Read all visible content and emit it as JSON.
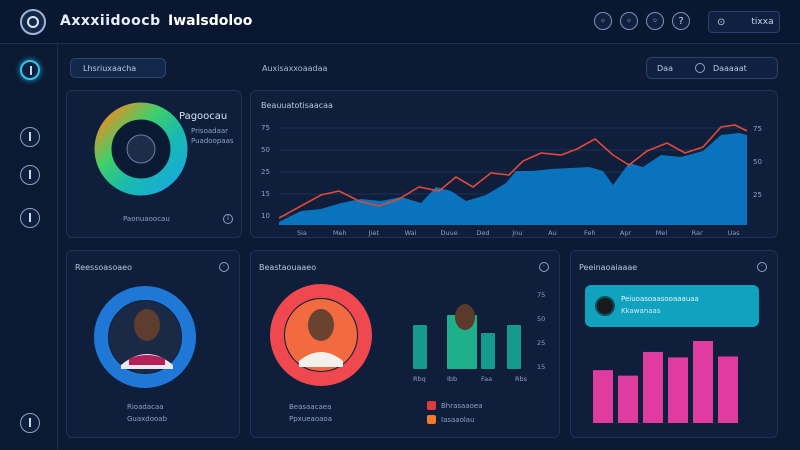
{
  "header": {
    "brand": "Axxxiidoocb",
    "title": "Iwalsdoloo",
    "search_value": "tixxa"
  },
  "filter": {
    "label": "Lhsriuxaacha"
  },
  "section": {
    "label": "Auxisaxxoaadaa"
  },
  "range": {
    "label_left": "Daa",
    "label_right": "Daaaaat"
  },
  "donut_card": {
    "title": "Pagoocau",
    "legend_1": "Prisoadaar",
    "legend_2": "Puadoopaas",
    "footer": "Paonuaoocau",
    "colors": {
      "green": "#3fd06a",
      "orange": "#f48a1e",
      "blue": "#1aa9e0",
      "teal": "#18b9b0"
    }
  },
  "area_card": {
    "title": "Beauuatotisaacaa",
    "y_labels_left": [
      "75",
      "50",
      "25",
      "15",
      "10"
    ],
    "y_labels_right": [
      "75",
      "50",
      "25"
    ],
    "x_labels": [
      "Sia",
      "Meh",
      "Jiet",
      "Wai",
      "Duue",
      "Ded",
      "Jnu",
      "Au",
      "Feh",
      "Apr",
      "Mel",
      "Rar",
      "Uas"
    ],
    "colors": {
      "area": "#0a78c4",
      "line": "#e0483a"
    }
  },
  "profile_card_1": {
    "title": "Reessoasoaeo",
    "name": "Rioadacaa",
    "subtitle": "Guaxdooab",
    "ring_color": "#1f78d6"
  },
  "profile_card_2": {
    "title": "Beastaouaaeo",
    "name": "Beasaacaea",
    "subtitle": "Ppxueaoaoa",
    "ring_color": "#f0484f",
    "bar_x_labels": [
      "Rbq",
      "Ibb",
      "Faa",
      "Rbs"
    ],
    "bar_y_labels": [
      "75",
      "50",
      "25",
      "15"
    ],
    "legend_1": "Bhrasaaoea",
    "legend_2": "Iasaaolau"
  },
  "bar_card": {
    "title": "Peeinaoaiaaae",
    "banner_line_1": "Peiuoasoaasooaaauaa",
    "banner_line_2": "Kkawanaas",
    "values": [
      58,
      52,
      78,
      72,
      90,
      73
    ],
    "color": "#e03ca0",
    "banner_color": "#10a2be"
  }
}
